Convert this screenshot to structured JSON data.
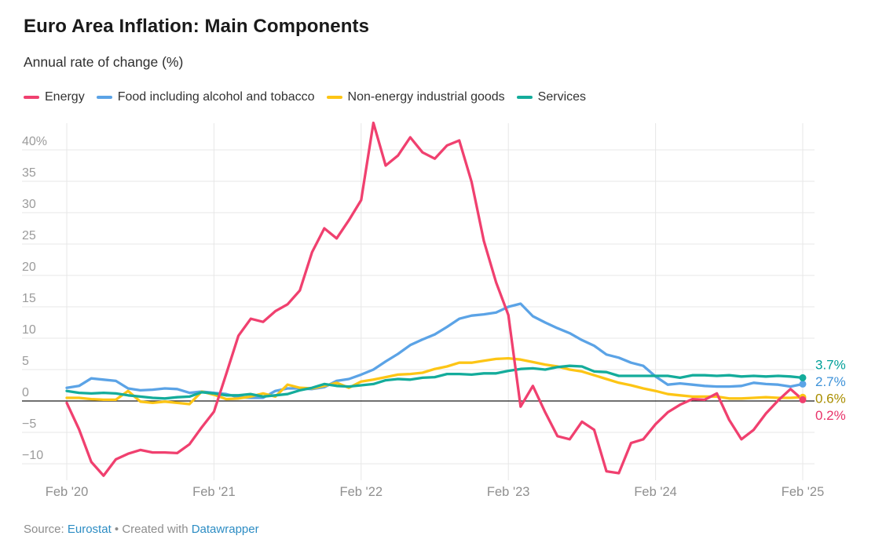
{
  "header": {
    "title": "Euro Area Inflation: Main Components",
    "subtitle": "Annual rate of change (%)"
  },
  "footer": {
    "source_prefix": "Source: ",
    "source_link": "Eurostat",
    "separator": " • ",
    "created_with": "Created with ",
    "tool_link": "Datawrapper"
  },
  "chart_data": {
    "type": "line",
    "title": "Euro Area Inflation: Main Components",
    "subtitle": "Annual rate of change (%)",
    "x_unit": "month",
    "x_range": [
      "Feb 2020",
      "Feb 2025"
    ],
    "months_count": 61,
    "grid": true,
    "legend_position": "top",
    "ylim": [
      -12.5,
      45.5
    ],
    "y_ticks": [
      {
        "value": 40,
        "label": "40%"
      },
      {
        "value": 35,
        "label": "35"
      },
      {
        "value": 30,
        "label": "30"
      },
      {
        "value": 25,
        "label": "25"
      },
      {
        "value": 20,
        "label": "20"
      },
      {
        "value": 15,
        "label": "15"
      },
      {
        "value": 10,
        "label": "10"
      },
      {
        "value": 5,
        "label": "5"
      },
      {
        "value": 0,
        "label": "0"
      },
      {
        "value": -5,
        "label": "−5"
      },
      {
        "value": -10,
        "label": "−10"
      }
    ],
    "x_ticks": [
      {
        "month_index": 0,
        "label": "Feb '20"
      },
      {
        "month_index": 12,
        "label": "Feb '21"
      },
      {
        "month_index": 24,
        "label": "Feb '22"
      },
      {
        "month_index": 36,
        "label": "Feb '23"
      },
      {
        "month_index": 48,
        "label": "Feb '24"
      },
      {
        "month_index": 60,
        "label": "Feb '25"
      }
    ],
    "zero_baseline_color": "#1a1a1a",
    "gridline_color": "#e7e7e7",
    "series": [
      {
        "key": "energy",
        "name": "Energy",
        "color": "#f0406f",
        "label_color": "#e8336a",
        "end_label": "0.2%",
        "values": [
          -0.3,
          -4.5,
          -9.7,
          -11.9,
          -9.3,
          -8.4,
          -7.8,
          -8.2,
          -8.2,
          -8.3,
          -6.9,
          -4.2,
          -1.7,
          4.3,
          10.4,
          13.1,
          12.6,
          14.3,
          15.4,
          17.6,
          23.7,
          27.5,
          25.9,
          28.8,
          32.0,
          44.3,
          37.5,
          39.1,
          42.0,
          39.6,
          38.6,
          40.7,
          41.5,
          34.9,
          25.5,
          18.9,
          13.7,
          -0.9,
          2.4,
          -1.8,
          -5.6,
          -6.1,
          -3.3,
          -4.6,
          -11.2,
          -11.5,
          -6.7,
          -6.1,
          -3.7,
          -1.8,
          -0.6,
          0.3,
          0.2,
          1.2,
          -3.0,
          -6.1,
          -4.6,
          -2.0,
          0.1,
          1.9,
          0.2
        ]
      },
      {
        "key": "food",
        "name": "Food including alcohol and tobacco",
        "color": "#5ba3e6",
        "label_color": "#3e92d8",
        "end_label": "2.7%",
        "values": [
          2.1,
          2.4,
          3.6,
          3.4,
          3.2,
          2.0,
          1.7,
          1.8,
          2.0,
          1.9,
          1.3,
          1.5,
          1.3,
          1.1,
          0.6,
          0.5,
          0.5,
          1.6,
          2.0,
          2.0,
          1.9,
          2.2,
          3.2,
          3.5,
          4.2,
          5.0,
          6.3,
          7.5,
          8.9,
          9.8,
          10.6,
          11.8,
          13.1,
          13.6,
          13.8,
          14.1,
          15.0,
          15.5,
          13.5,
          12.5,
          11.6,
          10.8,
          9.7,
          8.8,
          7.4,
          6.9,
          6.1,
          5.6,
          3.9,
          2.6,
          2.8,
          2.6,
          2.4,
          2.3,
          2.3,
          2.4,
          2.9,
          2.7,
          2.6,
          2.3,
          2.7
        ]
      },
      {
        "key": "non-energy",
        "name": "Non-energy industrial goods",
        "color": "#fdc515",
        "label_color": "#a98e00",
        "end_label": "0.6%",
        "values": [
          0.5,
          0.5,
          0.3,
          0.2,
          0.2,
          1.6,
          -0.1,
          -0.3,
          -0.1,
          -0.3,
          -0.5,
          1.5,
          1.0,
          0.3,
          0.4,
          0.7,
          1.2,
          0.7,
          2.6,
          2.1,
          2.0,
          2.4,
          2.9,
          2.1,
          3.1,
          3.4,
          3.8,
          4.2,
          4.3,
          4.5,
          5.1,
          5.5,
          6.1,
          6.1,
          6.4,
          6.7,
          6.8,
          6.6,
          6.2,
          5.8,
          5.5,
          5.0,
          4.7,
          4.1,
          3.5,
          2.9,
          2.5,
          2.0,
          1.6,
          1.1,
          0.9,
          0.7,
          0.7,
          0.7,
          0.4,
          0.4,
          0.5,
          0.6,
          0.5,
          0.5,
          0.6
        ]
      },
      {
        "key": "services",
        "name": "Services",
        "color": "#14ac9b",
        "label_color": "#00a099",
        "end_label": "3.7%",
        "values": [
          1.6,
          1.3,
          1.2,
          1.3,
          1.2,
          0.9,
          0.7,
          0.5,
          0.4,
          0.6,
          0.7,
          1.4,
          1.2,
          0.9,
          0.9,
          1.1,
          0.7,
          0.9,
          1.1,
          1.7,
          2.1,
          2.7,
          2.4,
          2.3,
          2.5,
          2.7,
          3.3,
          3.5,
          3.4,
          3.7,
          3.8,
          4.3,
          4.3,
          4.2,
          4.4,
          4.4,
          4.8,
          5.1,
          5.2,
          5.0,
          5.4,
          5.6,
          5.5,
          4.7,
          4.6,
          4.0,
          4.0,
          4.0,
          4.0,
          4.0,
          3.7,
          4.1,
          4.1,
          4.0,
          4.1,
          3.9,
          4.0,
          3.9,
          4.0,
          3.9,
          3.7
        ]
      }
    ]
  }
}
